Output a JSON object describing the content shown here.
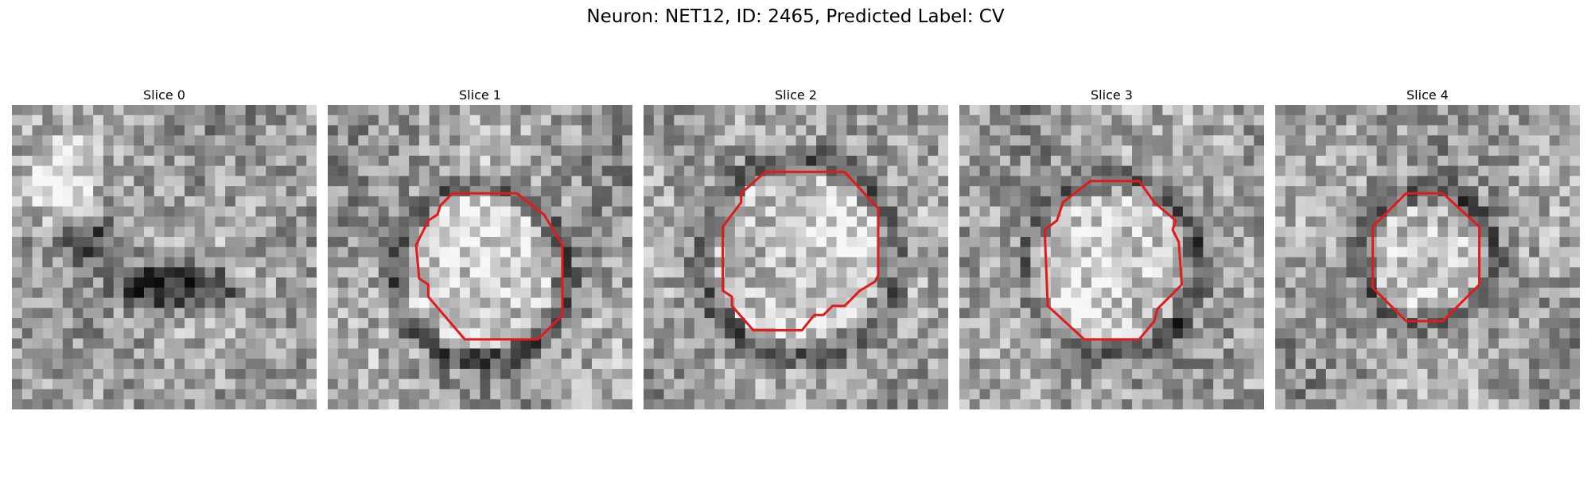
{
  "figure": {
    "title": "Neuron: NET12, ID: 2465, Predicted Label: CV"
  },
  "panels": [
    {
      "title": "Slice 0",
      "has_contour": false,
      "texture": "background-tissue",
      "seed": 11
    },
    {
      "title": "Slice 1",
      "has_contour": true,
      "seed": 23
    },
    {
      "title": "Slice 2",
      "has_contour": true,
      "seed": 37
    },
    {
      "title": "Slice 3",
      "has_contour": true,
      "seed": 41
    },
    {
      "title": "Slice 4",
      "has_contour": true,
      "seed": 53
    }
  ],
  "contour_color": "#e31a1c",
  "colormap": "gray"
}
